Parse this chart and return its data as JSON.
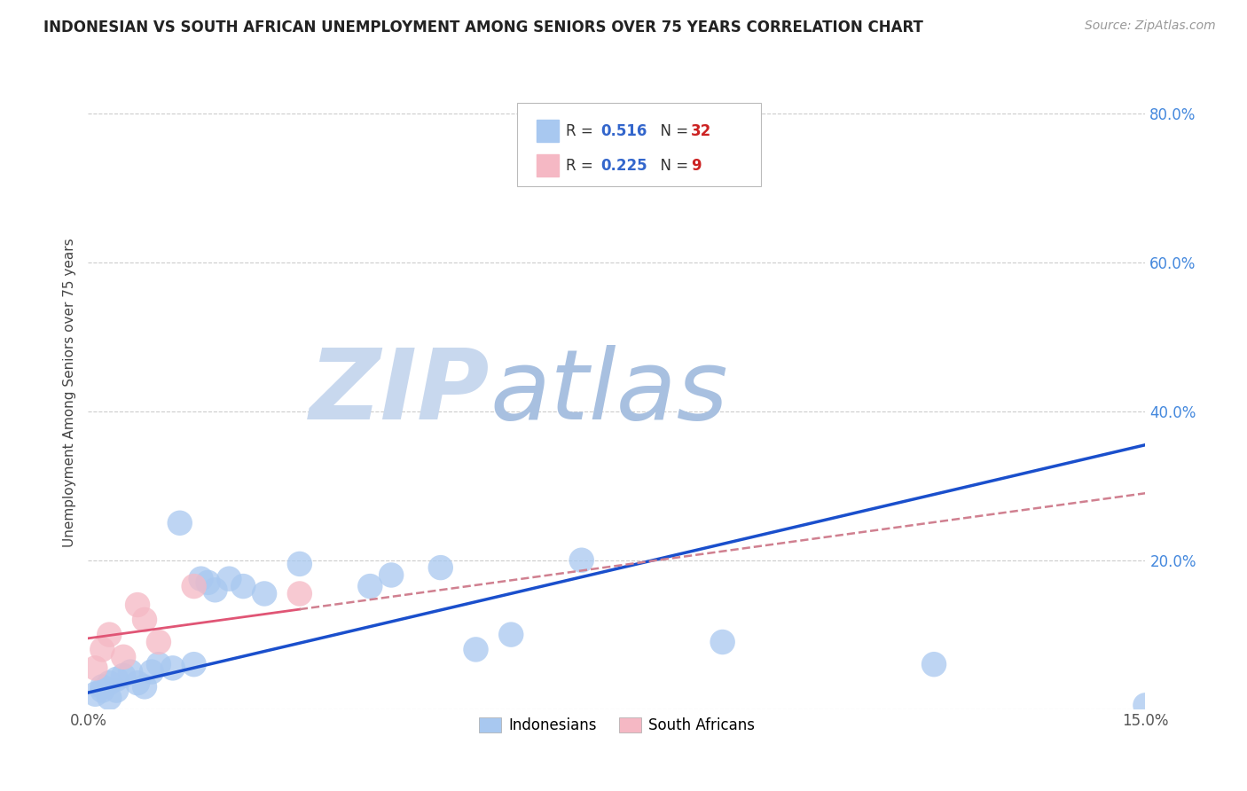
{
  "title": "INDONESIAN VS SOUTH AFRICAN UNEMPLOYMENT AMONG SENIORS OVER 75 YEARS CORRELATION CHART",
  "source": "Source: ZipAtlas.com",
  "ylabel": "Unemployment Among Seniors over 75 years",
  "xlim": [
    0.0,
    0.15
  ],
  "ylim": [
    0.0,
    0.85
  ],
  "xticks": [
    0.0,
    0.03,
    0.06,
    0.09,
    0.12,
    0.15
  ],
  "xticklabels": [
    "0.0%",
    "",
    "",
    "",
    "",
    "15.0%"
  ],
  "yticks": [
    0.0,
    0.2,
    0.4,
    0.6,
    0.8
  ],
  "yticklabels": [
    "",
    "20.0%",
    "40.0%",
    "60.0%",
    "80.0%"
  ],
  "indonesian_x": [
    0.001,
    0.002,
    0.002,
    0.003,
    0.003,
    0.004,
    0.004,
    0.005,
    0.006,
    0.007,
    0.008,
    0.009,
    0.01,
    0.012,
    0.013,
    0.015,
    0.016,
    0.017,
    0.018,
    0.02,
    0.022,
    0.025,
    0.03,
    0.04,
    0.043,
    0.05,
    0.055,
    0.06,
    0.07,
    0.09,
    0.12,
    0.15
  ],
  "indonesian_y": [
    0.02,
    0.025,
    0.03,
    0.035,
    0.015,
    0.04,
    0.025,
    0.045,
    0.05,
    0.035,
    0.03,
    0.05,
    0.06,
    0.055,
    0.25,
    0.06,
    0.175,
    0.17,
    0.16,
    0.175,
    0.165,
    0.155,
    0.195,
    0.165,
    0.18,
    0.19,
    0.08,
    0.1,
    0.2,
    0.09,
    0.06,
    0.005
  ],
  "southafrican_x": [
    0.001,
    0.002,
    0.003,
    0.005,
    0.007,
    0.008,
    0.01,
    0.015,
    0.03
  ],
  "southafrican_y": [
    0.055,
    0.08,
    0.1,
    0.07,
    0.14,
    0.12,
    0.09,
    0.165,
    0.155
  ],
  "r_indonesian": 0.516,
  "n_indonesian": 32,
  "r_southafrican": 0.225,
  "n_southafrican": 9,
  "color_indonesian": "#a8c8f0",
  "color_southafrican": "#f5b8c4",
  "line_color_indonesian": "#1a4fcc",
  "line_color_southafrican": "#e05575",
  "line_color_sa_dashed": "#d08090",
  "watermark_zip_color": "#c8d8ee",
  "watermark_atlas_color": "#a8c0e0",
  "background_color": "#ffffff",
  "grid_color": "#cccccc",
  "title_color": "#222222",
  "source_color": "#999999",
  "tick_color": "#555555",
  "ylabel_color": "#444444",
  "right_tick_color": "#4488dd"
}
